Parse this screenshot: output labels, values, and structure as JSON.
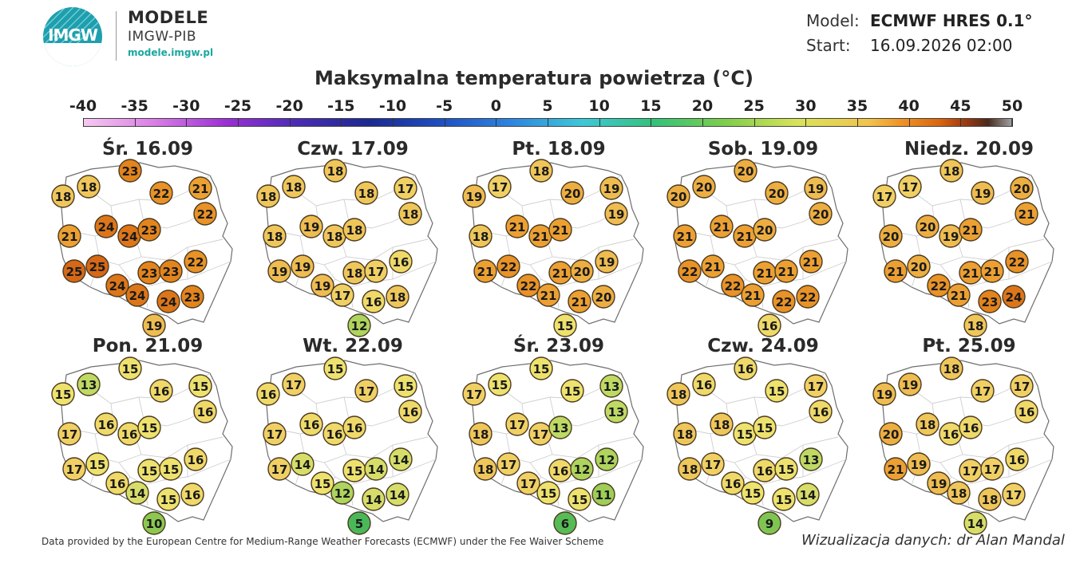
{
  "header": {
    "brand_title": "MODELE",
    "brand_subtitle": "IMGW-PIB",
    "brand_url": "modele.imgw.pl",
    "logo_text": "IMGW",
    "model_label": "Model:",
    "model_value": "ECMWF HRES 0.1°",
    "start_label": "Start:",
    "start_value": "16.09.2026 02:00"
  },
  "title": "Maksymalna temperatura powietrza (°C)",
  "scale": {
    "ticks": [
      "-40",
      "-35",
      "-30",
      "-25",
      "-20",
      "-15",
      "-10",
      "-5",
      "0",
      "5",
      "10",
      "15",
      "20",
      "25",
      "30",
      "35",
      "40",
      "45",
      "50"
    ],
    "min": -40,
    "max": 50
  },
  "days": [
    {
      "label": "Śr. 16.09",
      "values": [
        18,
        18,
        23,
        22,
        21,
        22,
        21,
        24,
        24,
        23,
        25,
        23,
        23,
        22,
        25,
        24,
        24,
        24,
        23,
        19
      ]
    },
    {
      "label": "Czw. 17.09",
      "values": [
        18,
        18,
        18,
        18,
        17,
        18,
        18,
        19,
        18,
        18,
        19,
        18,
        17,
        16,
        19,
        19,
        17,
        16,
        18,
        12
      ]
    },
    {
      "label": "Pt. 18.09",
      "values": [
        19,
        17,
        18,
        20,
        19,
        19,
        18,
        21,
        21,
        21,
        21,
        21,
        20,
        19,
        22,
        22,
        21,
        21,
        20,
        15
      ]
    },
    {
      "label": "Sob. 19.09",
      "values": [
        20,
        20,
        20,
        20,
        19,
        20,
        21,
        21,
        21,
        20,
        22,
        21,
        21,
        21,
        21,
        22,
        21,
        22,
        22,
        16
      ]
    },
    {
      "label": "Niedz. 20.09",
      "values": [
        17,
        17,
        18,
        19,
        20,
        21,
        20,
        20,
        19,
        21,
        21,
        21,
        21,
        22,
        20,
        22,
        21,
        23,
        24,
        18
      ]
    },
    {
      "label": "Pon. 21.09",
      "values": [
        15,
        13,
        15,
        16,
        15,
        16,
        17,
        16,
        16,
        15,
        17,
        15,
        15,
        16,
        15,
        16,
        14,
        15,
        16,
        10
      ]
    },
    {
      "label": "Wt. 22.09",
      "values": [
        16,
        17,
        15,
        17,
        15,
        16,
        17,
        16,
        16,
        16,
        17,
        15,
        14,
        14,
        14,
        15,
        12,
        14,
        14,
        5
      ]
    },
    {
      "label": "Śr. 23.09",
      "values": [
        17,
        15,
        15,
        15,
        13,
        13,
        18,
        17,
        17,
        13,
        18,
        16,
        12,
        12,
        17,
        17,
        15,
        15,
        11,
        6
      ]
    },
    {
      "label": "Czw. 24.09",
      "values": [
        18,
        16,
        16,
        15,
        17,
        16,
        18,
        18,
        15,
        15,
        18,
        16,
        15,
        13,
        17,
        16,
        15,
        15,
        14,
        9
      ]
    },
    {
      "label": "Pt. 25.09",
      "values": [
        19,
        19,
        18,
        17,
        17,
        16,
        20,
        18,
        16,
        16,
        21,
        17,
        17,
        16,
        19,
        19,
        18,
        18,
        17,
        14
      ]
    }
  ],
  "footer": {
    "left": "Data provided by the European Centre for Medium-Range Weather Forecasts (ECMWF) under the Fee Waiver Scheme",
    "right": "Wizualizacja danych: dr Alan Mandal"
  },
  "colors": {
    "accent": "#1aa7a0",
    "text": "#2a2a2a"
  }
}
